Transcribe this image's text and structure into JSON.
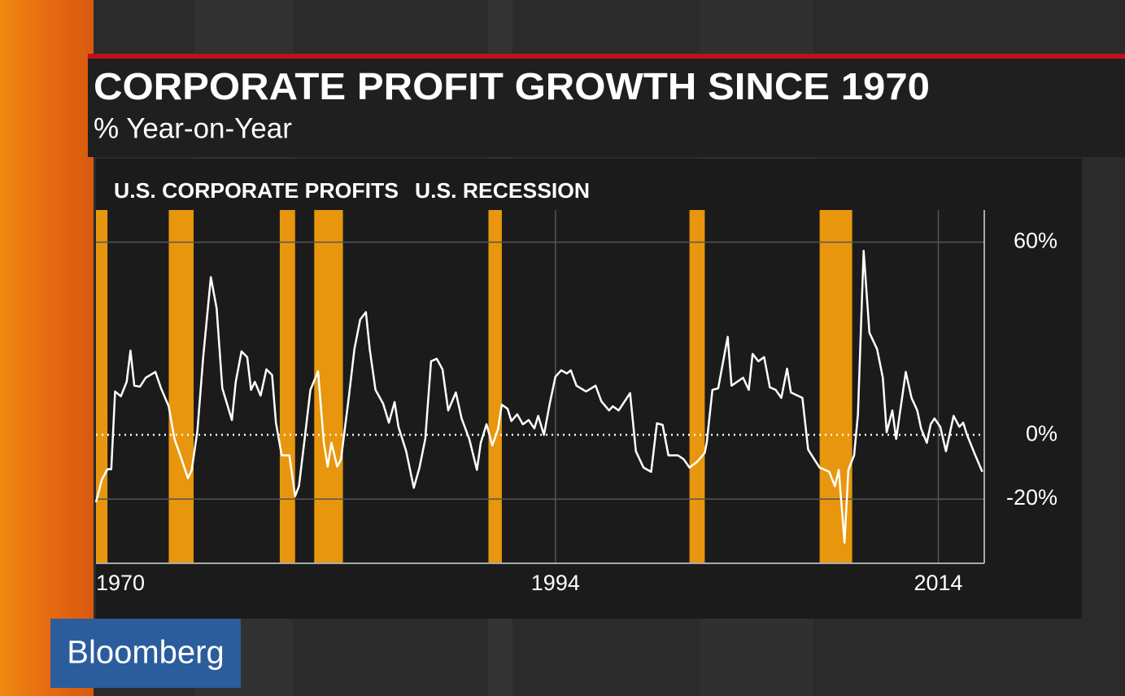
{
  "chart_data": {
    "type": "line",
    "title": "CORPORATE PROFIT GROWTH SINCE 1970",
    "subtitle": "% Year-on-Year",
    "x": [
      1970.0,
      1970.3,
      1970.6,
      1970.8,
      1971.0,
      1971.3,
      1971.6,
      1971.8,
      1972.0,
      1972.3,
      1972.6,
      1973.1,
      1973.4,
      1973.8,
      1974.1,
      1974.4,
      1974.8,
      1975.0,
      1975.3,
      1975.6,
      1976.0,
      1976.3,
      1976.6,
      1977.1,
      1977.3,
      1977.6,
      1977.9,
      1978.1,
      1978.3,
      1978.6,
      1978.9,
      1979.2,
      1979.4,
      1979.7,
      1980.1,
      1980.4,
      1980.6,
      1980.9,
      1981.2,
      1981.6,
      1981.9,
      1982.1,
      1982.3,
      1982.6,
      1982.8,
      1983.2,
      1983.5,
      1983.8,
      1984.1,
      1984.3,
      1984.6,
      1985.0,
      1985.3,
      1985.6,
      1985.8,
      1986.2,
      1986.6,
      1986.9,
      1987.2,
      1987.5,
      1987.8,
      1988.1,
      1988.4,
      1988.8,
      1989.1,
      1989.5,
      1989.9,
      1990.1,
      1990.4,
      1990.7,
      1991.0,
      1991.2,
      1991.5,
      1991.7,
      1992.0,
      1992.3,
      1992.6,
      1992.9,
      1993.1,
      1993.4,
      1993.7,
      1994.0,
      1994.3,
      1994.6,
      1994.8,
      1995.1,
      1995.6,
      1996.1,
      1996.4,
      1996.8,
      1997.0,
      1997.3,
      1997.9,
      1998.2,
      1998.6,
      1999.0,
      1999.3,
      1999.6,
      1999.9,
      2000.4,
      2000.7,
      2001.0,
      2001.4,
      2001.8,
      2001.9,
      2002.2,
      2002.5,
      2003.0,
      2003.2,
      2003.8,
      2004.1,
      2004.3,
      2004.6,
      2004.9,
      2005.2,
      2005.5,
      2005.8,
      2006.1,
      2006.3,
      2006.9,
      2007.2,
      2007.5,
      2007.8,
      2008.3,
      2008.6,
      2008.8,
      2009.1,
      2009.3,
      2009.6,
      2009.8,
      2010.1,
      2010.4,
      2010.8,
      2011.1,
      2011.3,
      2011.6,
      2011.8,
      2012.3,
      2012.6,
      2012.9,
      2013.1,
      2013.4,
      2013.6,
      2013.8,
      2014.1,
      2014.4,
      2014.8,
      2015.1,
      2015.3,
      2015.5,
      2015.9,
      2016.3
    ],
    "series": [
      {
        "name": "U.S. CORPORATE PROFITS",
        "color": "#ffffff",
        "values": [
          -21,
          -14,
          -10.7,
          -10.7,
          13.5,
          12,
          16.5,
          26.2,
          15.3,
          15,
          17.8,
          19.6,
          14.5,
          8.9,
          -1.3,
          -6.4,
          -13.5,
          -11,
          1.3,
          24.2,
          49.1,
          39.4,
          14.5,
          4.6,
          16.5,
          26,
          24.2,
          14,
          16.5,
          12.2,
          20.4,
          18.6,
          3.8,
          -6.4,
          -6.4,
          -19.1,
          -16,
          -1.3,
          14,
          19.8,
          -2.5,
          -9.9,
          -2.5,
          -9.9,
          -7.6,
          11.5,
          26.7,
          35.9,
          38.2,
          26.7,
          14,
          9.7,
          3.8,
          10.2,
          2.5,
          -5.1,
          -16.5,
          -10.2,
          -1.3,
          22.9,
          23.7,
          20.4,
          7.6,
          13.2,
          5.1,
          -1.3,
          -10.9,
          -2.5,
          3.3,
          -3.3,
          1.8,
          9.4,
          8.1,
          4.3,
          6.4,
          3.3,
          4.6,
          2,
          5.9,
          0,
          9.7,
          18.1,
          20.1,
          19.1,
          20.1,
          15.3,
          13.5,
          15.3,
          10.4,
          7.6,
          8.9,
          7.6,
          13,
          -5.1,
          -10.2,
          -11.5,
          3.6,
          3.1,
          -6.4,
          -6.4,
          -7.6,
          -10.2,
          -8.4,
          -5.6,
          -2.5,
          14,
          14.5,
          30.5,
          15.3,
          17.8,
          14,
          25.2,
          22.9,
          24.2,
          14.8,
          14,
          11.5,
          20.6,
          13.2,
          11.5,
          -4.6,
          -7.4,
          -10.2,
          -11.5,
          -16,
          -10.9,
          -33.6,
          -10.9,
          -6.4,
          6.4,
          57.3,
          31.8,
          26.7,
          17.8,
          0.8,
          7.6,
          -1.3,
          19.6,
          11.5,
          7.6,
          2,
          -2.5,
          3.3,
          5.1,
          2.5,
          -5.1,
          5.9,
          2.5,
          3.8,
          0,
          -5.9,
          -11.5
        ]
      }
    ],
    "bands": {
      "name": "U.S. RECESSION",
      "color": "#e8960e",
      "ranges": [
        [
          1970.0,
          1970.6
        ],
        [
          1973.8,
          1975.1
        ],
        [
          1979.6,
          1980.4
        ],
        [
          1981.4,
          1982.9
        ],
        [
          1990.5,
          1991.2
        ],
        [
          2001.0,
          2001.8
        ],
        [
          2007.8,
          2009.5
        ]
      ]
    },
    "xlim": [
      1970,
      2016.4
    ],
    "xticks": [
      1970,
      1994,
      2014
    ],
    "ylim": [
      -40,
      70
    ],
    "yticks": [
      {
        "value": 60,
        "label": "60%"
      },
      {
        "value": 0,
        "label": "0%"
      },
      {
        "value": -20,
        "label": "-20%"
      }
    ],
    "grid": true
  },
  "brand": "Bloomberg"
}
